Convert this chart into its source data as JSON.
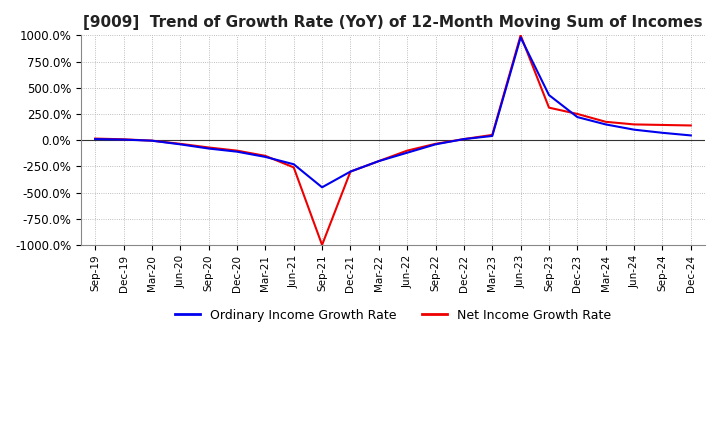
{
  "title": "[9009]  Trend of Growth Rate (YoY) of 12-Month Moving Sum of Incomes",
  "title_fontsize": 11,
  "ylim": [
    -1000,
    1000
  ],
  "yticks": [
    -1000,
    -750,
    -500,
    -250,
    0,
    250,
    500,
    750,
    1000
  ],
  "ytick_labels": [
    "-1000.0%",
    "-750.0%",
    "-500.0%",
    "-250.0%",
    "0.0%",
    "250.0%",
    "500.0%",
    "750.0%",
    "1000.0%"
  ],
  "background_color": "#ffffff",
  "grid_color": "#aaaaaa",
  "line1_color": "#0000ee",
  "line2_color": "#ee0000",
  "legend1": "Ordinary Income Growth Rate",
  "legend2": "Net Income Growth Rate",
  "x_dates": [
    "Sep-19",
    "Dec-19",
    "Mar-20",
    "Jun-20",
    "Sep-20",
    "Dec-20",
    "Mar-21",
    "Jun-21",
    "Sep-21",
    "Dec-21",
    "Mar-22",
    "Jun-22",
    "Sep-22",
    "Dec-22",
    "Mar-23",
    "Jun-23",
    "Sep-23",
    "Dec-23",
    "Mar-24",
    "Jun-24",
    "Sep-24",
    "Dec-24"
  ],
  "ordinary_income_growth": [
    10,
    5,
    -5,
    -40,
    -80,
    -110,
    -160,
    -230,
    -450,
    -300,
    -200,
    -120,
    -40,
    10,
    40,
    980,
    430,
    220,
    150,
    100,
    70,
    45
  ],
  "net_income_growth": [
    15,
    8,
    -5,
    -35,
    -70,
    -100,
    -150,
    -260,
    -1000,
    -300,
    -200,
    -100,
    -35,
    10,
    50,
    1000,
    310,
    250,
    175,
    150,
    145,
    140
  ]
}
